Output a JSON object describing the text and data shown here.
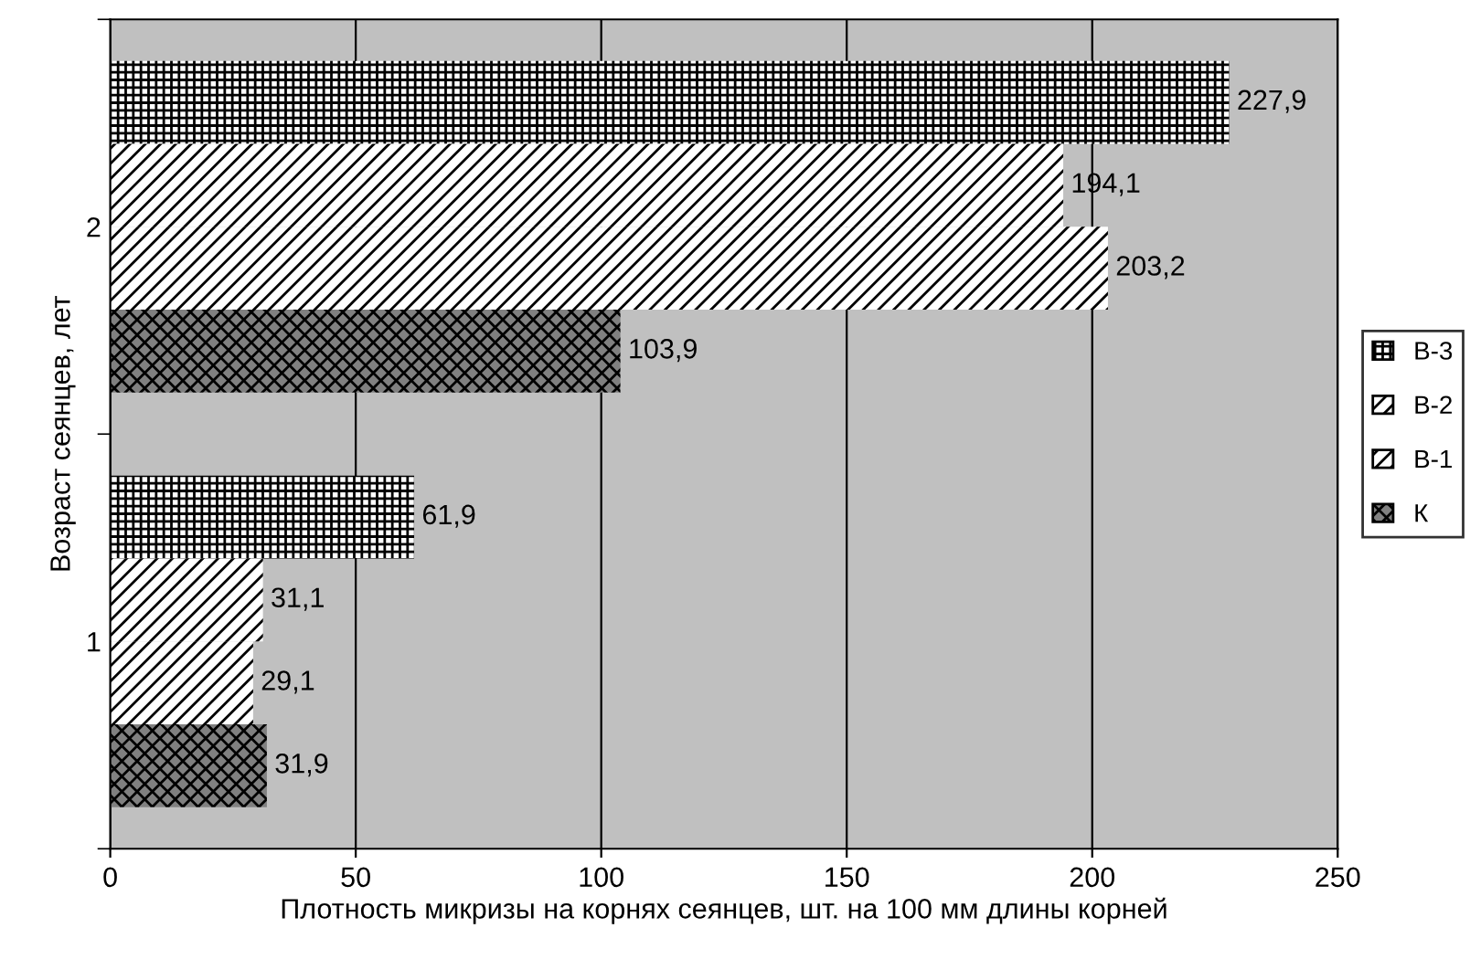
{
  "chart_data": {
    "type": "bar",
    "orientation": "horizontal",
    "ylabel": "Возраст сеянцев, лет",
    "xlabel": "Плотность микризы на корнях сеянцев, шт. на 100 мм длины корней",
    "categories": [
      "2",
      "1"
    ],
    "series": [
      {
        "name": "В-3",
        "color": "#ffffff",
        "values": [
          227.9,
          61.9
        ],
        "value_labels": [
          "227,9",
          "61,9"
        ]
      },
      {
        "name": "В-2",
        "color": "#ffffff",
        "values": [
          194.1,
          31.1
        ],
        "value_labels": [
          "194,1",
          "31,1"
        ]
      },
      {
        "name": "В-1",
        "color": "#ffffff",
        "values": [
          203.2,
          29.1
        ],
        "value_labels": [
          "203,2",
          "29,1"
        ]
      },
      {
        "name": "К",
        "color": "#808080",
        "values": [
          103.9,
          31.9
        ],
        "value_labels": [
          "103,9",
          "31,9"
        ]
      }
    ],
    "xlim": [
      0,
      250
    ],
    "xticks": [
      0,
      50,
      100,
      150,
      200,
      250
    ],
    "grid": "x",
    "legend": "right"
  }
}
